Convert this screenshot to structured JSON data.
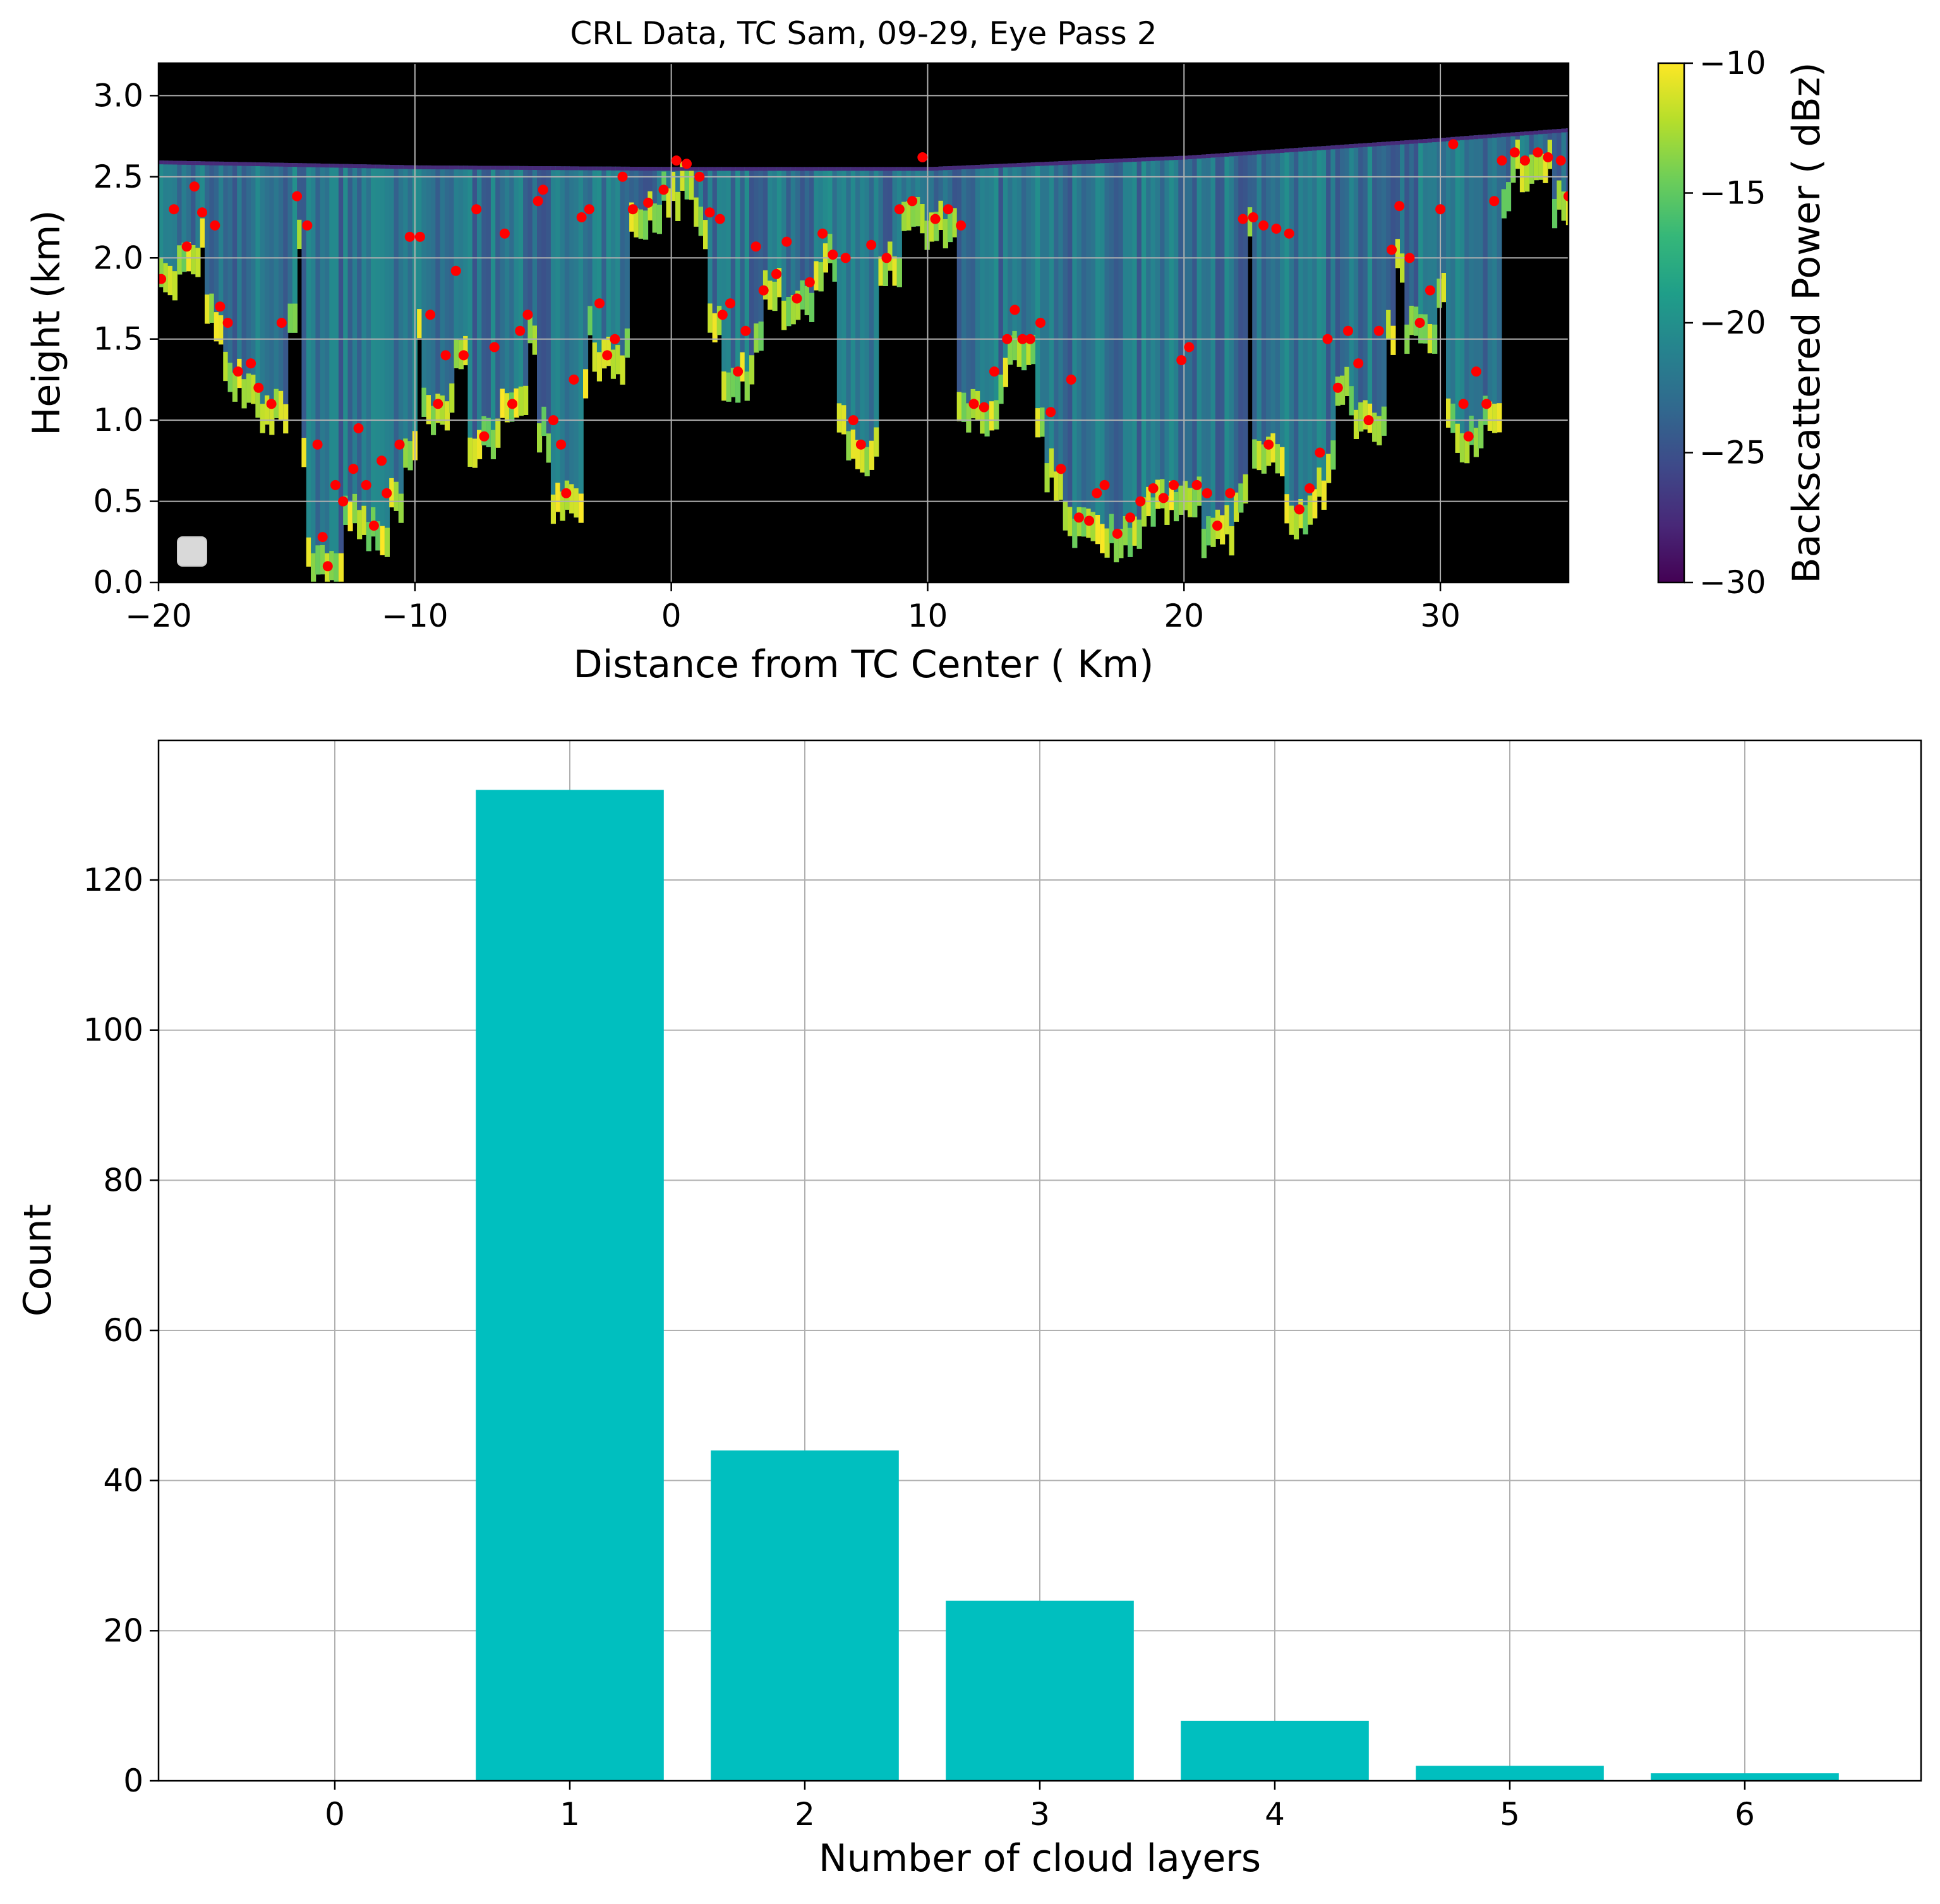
{
  "colors": {
    "bar": "#00bfbf",
    "marker": "#ff0000",
    "background": "#000000",
    "grid": "#b0b0b0",
    "viridis": [
      "#440154",
      "#482878",
      "#3e4989",
      "#31688e",
      "#26828e",
      "#1f9e89",
      "#35b779",
      "#6ece58",
      "#b5de2b",
      "#fde725"
    ]
  },
  "chart_data": [
    {
      "type": "heatmap",
      "title": "CRL Data, TC Sam, 09-29, Eye Pass 2",
      "xlabel": "Distance from TC Center ( Km)",
      "ylabel": "Height (km)",
      "xlim": [
        -20,
        35
      ],
      "ylim": [
        0,
        3.2
      ],
      "xticks": [
        "−20",
        "−10",
        "0",
        "10",
        "20",
        "30"
      ],
      "yticks": [
        "0.0",
        "0.5",
        "1.0",
        "1.5",
        "2.0",
        "2.5",
        "3.0"
      ],
      "grid": true,
      "colorbar": {
        "label": "Backscattered Power ( dBz)",
        "range": [
          -30,
          -10
        ],
        "ticks": [
          "−30",
          "−25",
          "−20",
          "−15",
          "−10"
        ]
      },
      "top_boundary": [
        [
          -20,
          2.6
        ],
        [
          -10,
          2.57
        ],
        [
          0,
          2.56
        ],
        [
          10,
          2.56
        ],
        [
          20,
          2.63
        ],
        [
          30,
          2.74
        ],
        [
          35,
          2.8
        ]
      ],
      "cloud_layer_points": [
        [
          -19.9,
          1.87
        ],
        [
          -19.4,
          2.3
        ],
        [
          -18.9,
          2.07
        ],
        [
          -18.6,
          2.44
        ],
        [
          -18.3,
          2.28
        ],
        [
          -17.8,
          2.2
        ],
        [
          -17.6,
          1.7
        ],
        [
          -17.3,
          1.6
        ],
        [
          -16.9,
          1.3
        ],
        [
          -16.4,
          1.35
        ],
        [
          -16.1,
          1.2
        ],
        [
          -15.6,
          1.1
        ],
        [
          -15.2,
          1.6
        ],
        [
          -14.6,
          2.38
        ],
        [
          -14.2,
          2.2
        ],
        [
          -13.8,
          0.85
        ],
        [
          -13.6,
          0.28
        ],
        [
          -13.4,
          0.1
        ],
        [
          -13.1,
          0.6
        ],
        [
          -12.8,
          0.5
        ],
        [
          -12.4,
          0.7
        ],
        [
          -12.2,
          0.95
        ],
        [
          -11.9,
          0.6
        ],
        [
          -11.6,
          0.35
        ],
        [
          -11.3,
          0.75
        ],
        [
          -11.1,
          0.55
        ],
        [
          -10.6,
          0.85
        ],
        [
          -10.2,
          2.13
        ],
        [
          -9.8,
          2.13
        ],
        [
          -9.4,
          1.65
        ],
        [
          -9.1,
          1.1
        ],
        [
          -8.8,
          1.4
        ],
        [
          -8.4,
          1.92
        ],
        [
          -8.1,
          1.4
        ],
        [
          -7.6,
          2.3
        ],
        [
          -7.3,
          0.9
        ],
        [
          -6.9,
          1.45
        ],
        [
          -6.5,
          2.15
        ],
        [
          -6.2,
          1.1
        ],
        [
          -5.9,
          1.55
        ],
        [
          -5.6,
          1.65
        ],
        [
          -5.2,
          2.35
        ],
        [
          -5.0,
          2.42
        ],
        [
          -4.6,
          1.0
        ],
        [
          -4.3,
          0.85
        ],
        [
          -4.1,
          0.55
        ],
        [
          -3.8,
          1.25
        ],
        [
          -3.5,
          2.25
        ],
        [
          -3.2,
          2.3
        ],
        [
          -2.8,
          1.72
        ],
        [
          -2.5,
          1.4
        ],
        [
          -2.2,
          1.5
        ],
        [
          -1.9,
          2.5
        ],
        [
          -1.5,
          2.3
        ],
        [
          -0.9,
          2.34
        ],
        [
          -0.3,
          2.42
        ],
        [
          0.2,
          2.6
        ],
        [
          0.6,
          2.58
        ],
        [
          1.1,
          2.5
        ],
        [
          1.5,
          2.28
        ],
        [
          1.9,
          2.24
        ],
        [
          2.0,
          1.65
        ],
        [
          2.3,
          1.72
        ],
        [
          2.6,
          1.3
        ],
        [
          2.9,
          1.55
        ],
        [
          3.3,
          2.07
        ],
        [
          3.6,
          1.8
        ],
        [
          4.1,
          1.9
        ],
        [
          4.5,
          2.1
        ],
        [
          4.9,
          1.75
        ],
        [
          5.4,
          1.85
        ],
        [
          5.9,
          2.15
        ],
        [
          6.3,
          2.02
        ],
        [
          6.8,
          2.0
        ],
        [
          7.1,
          1.0
        ],
        [
          7.4,
          0.85
        ],
        [
          7.8,
          2.08
        ],
        [
          8.4,
          2.0
        ],
        [
          8.9,
          2.3
        ],
        [
          9.4,
          2.35
        ],
        [
          9.8,
          2.62
        ],
        [
          10.3,
          2.24
        ],
        [
          10.8,
          2.3
        ],
        [
          11.3,
          2.2
        ],
        [
          11.8,
          1.1
        ],
        [
          12.2,
          1.08
        ],
        [
          12.6,
          1.3
        ],
        [
          13.1,
          1.5
        ],
        [
          13.4,
          1.68
        ],
        [
          13.7,
          1.5
        ],
        [
          14.0,
          1.5
        ],
        [
          14.4,
          1.6
        ],
        [
          14.8,
          1.05
        ],
        [
          15.2,
          0.7
        ],
        [
          15.6,
          1.25
        ],
        [
          15.9,
          0.4
        ],
        [
          16.3,
          0.38
        ],
        [
          16.6,
          0.55
        ],
        [
          16.9,
          0.6
        ],
        [
          17.4,
          0.3
        ],
        [
          17.9,
          0.4
        ],
        [
          18.3,
          0.5
        ],
        [
          18.8,
          0.58
        ],
        [
          19.2,
          0.52
        ],
        [
          19.6,
          0.6
        ],
        [
          19.9,
          1.37
        ],
        [
          20.2,
          1.45
        ],
        [
          20.5,
          0.6
        ],
        [
          20.9,
          0.55
        ],
        [
          21.3,
          0.35
        ],
        [
          21.8,
          0.55
        ],
        [
          22.3,
          2.24
        ],
        [
          22.7,
          2.25
        ],
        [
          23.1,
          2.2
        ],
        [
          23.3,
          0.85
        ],
        [
          23.6,
          2.18
        ],
        [
          24.1,
          2.15
        ],
        [
          24.5,
          0.45
        ],
        [
          24.9,
          0.58
        ],
        [
          25.3,
          0.8
        ],
        [
          25.6,
          1.5
        ],
        [
          26.0,
          1.2
        ],
        [
          26.4,
          1.55
        ],
        [
          26.8,
          1.35
        ],
        [
          27.2,
          1.0
        ],
        [
          27.6,
          1.55
        ],
        [
          28.1,
          2.05
        ],
        [
          28.4,
          2.32
        ],
        [
          28.8,
          2.0
        ],
        [
          29.2,
          1.6
        ],
        [
          29.6,
          1.8
        ],
        [
          30.0,
          2.3
        ],
        [
          30.5,
          2.7
        ],
        [
          30.9,
          1.1
        ],
        [
          31.1,
          0.9
        ],
        [
          31.4,
          1.3
        ],
        [
          31.8,
          1.1
        ],
        [
          32.1,
          2.35
        ],
        [
          32.4,
          2.6
        ],
        [
          32.9,
          2.65
        ],
        [
          33.3,
          2.6
        ],
        [
          33.8,
          2.65
        ],
        [
          34.2,
          2.62
        ],
        [
          34.7,
          2.6
        ],
        [
          35.0,
          2.38
        ]
      ]
    },
    {
      "type": "bar",
      "title": "",
      "xlabel": "Number of cloud layers",
      "ylabel": "Count",
      "categories": [
        "0",
        "1",
        "2",
        "3",
        "4",
        "5",
        "6"
      ],
      "values": [
        0,
        132,
        44,
        24,
        8,
        2,
        1
      ],
      "xlim": [
        -0.75,
        6.75
      ],
      "ylim": [
        0,
        138.6
      ],
      "yticks": [
        "0",
        "20",
        "40",
        "60",
        "80",
        "100",
        "120"
      ],
      "grid": true
    }
  ]
}
